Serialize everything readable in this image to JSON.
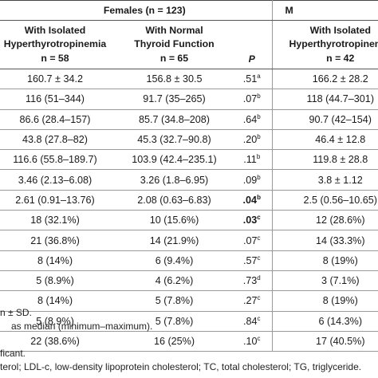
{
  "table": {
    "group_females": "Females (n = 123)",
    "group_males": "M",
    "headers": {
      "col1": [
        "With Isolated",
        "Hyperthyrotropinemia",
        "n = 58"
      ],
      "col2": [
        "With Normal",
        "Thyroid Function",
        "n = 65"
      ],
      "col3": "P",
      "col4": [
        "With Isolated",
        "Hyperthyrotropinemia",
        "n = 42"
      ]
    },
    "rows": [
      {
        "c1": "160.7 ± 34.2",
        "c2": "156.8 ± 30.5",
        "p": ".51",
        "psup": "a",
        "pbold": false,
        "c4": "166.2 ± 28.2"
      },
      {
        "c1": "116 (51–344)",
        "c2": "91.7 (35–265)",
        "p": ".07",
        "psup": "b",
        "pbold": false,
        "c4": "118 (44.7–301)"
      },
      {
        "c1": "86.6 (28.4–157)",
        "c2": "85.7 (34.8–208)",
        "p": ".64",
        "psup": "b",
        "pbold": false,
        "c4": "90.7 (42–154)"
      },
      {
        "c1": "43.8 (27.8–82)",
        "c2": "45.3 (32.7–90.8)",
        "p": ".20",
        "psup": "b",
        "pbold": false,
        "c4": "46.4 ± 12.8"
      },
      {
        "c1": "116.6 (55.8–189.7)",
        "c2": "103.9 (42.4–235.1)",
        "p": ".11",
        "psup": "b",
        "pbold": false,
        "c4": "119.8 ± 28.8"
      },
      {
        "c1": "3.46 (2.13–6.08)",
        "c2": "3.26 (1.8–6.95)",
        "p": ".09",
        "psup": "b",
        "pbold": false,
        "c4": "3.8 ± 1.12"
      },
      {
        "c1": "2.61 (0.91–13.76)",
        "c2": "2.08 (0.63–6.83)",
        "p": ".04",
        "psup": "b",
        "pbold": true,
        "c4": "2.5 (0.56–10.65)"
      },
      {
        "c1": "18 (32.1%)",
        "c2": "10 (15.6%)",
        "p": ".03",
        "psup": "c",
        "pbold": true,
        "c4": "12 (28.6%)"
      },
      {
        "c1": "21 (36.8%)",
        "c2": "14 (21.9%)",
        "p": ".07",
        "psup": "c",
        "pbold": false,
        "c4": "14 (33.3%)"
      },
      {
        "c1": "8 (14%)",
        "c2": "6 (9.4%)",
        "p": ".57",
        "psup": "c",
        "pbold": false,
        "c4": "8 (19%)"
      },
      {
        "c1": "5 (8.9%)",
        "c2": "4 (6.2%)",
        "p": ".73",
        "psup": "d",
        "pbold": false,
        "c4": "3 (7.1%)"
      },
      {
        "c1": "8 (14%)",
        "c2": "5 (7.8%)",
        "p": ".27",
        "psup": "c",
        "pbold": false,
        "c4": "8 (19%)"
      },
      {
        "c1": "5 (8.9%)",
        "c2": "5 (7.8%)",
        "p": ".84",
        "psup": "c",
        "pbold": false,
        "c4": "6 (14.3%)"
      },
      {
        "c1": "22 (38.6%)",
        "c2": "16 (25%)",
        "p": ".10",
        "psup": "c",
        "pbold": false,
        "c4": "17 (40.5%)"
      }
    ]
  },
  "footnotes": [
    "n ± SD.",
    "as median (minimum–maximum).",
    "",
    "ficant.",
    "terol; LDL-c, low-density lipoprotein cholesterol; TC, total cholesterol; TG, triglyceride."
  ]
}
